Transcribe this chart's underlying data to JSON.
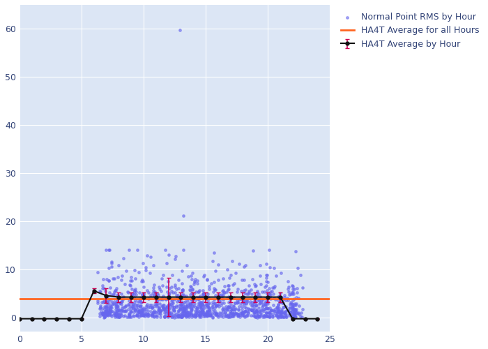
{
  "xlim": [
    0,
    25
  ],
  "ylim": [
    -3,
    65
  ],
  "yticks": [
    0,
    10,
    20,
    30,
    40,
    50,
    60
  ],
  "xticks": [
    0,
    5,
    10,
    15,
    20,
    25
  ],
  "bg_color": "#dce6f5",
  "scatter_color": "#6666ee",
  "scatter_alpha": 0.55,
  "scatter_size": 6,
  "line_color": "#111111",
  "line_marker": "o",
  "hline_color": "#ff6622",
  "hline_value": 3.8,
  "avg_hours": [
    0,
    1,
    2,
    3,
    4,
    5,
    6,
    7,
    8,
    9,
    10,
    11,
    12,
    13,
    14,
    15,
    16,
    17,
    18,
    19,
    20,
    21,
    22,
    23,
    24
  ],
  "avg_values": [
    -0.3,
    -0.3,
    -0.3,
    -0.3,
    -0.3,
    -0.3,
    5.5,
    4.5,
    4.2,
    4.2,
    4.2,
    4.2,
    4.2,
    4.2,
    4.2,
    4.2,
    4.2,
    4.2,
    4.2,
    4.2,
    4.2,
    4.2,
    -0.3,
    -0.3,
    -0.3
  ],
  "avg_errors": [
    0.1,
    0.1,
    0.1,
    0.1,
    0.1,
    0.1,
    0.5,
    1.5,
    1.0,
    1.0,
    1.0,
    1.0,
    4.0,
    1.0,
    1.0,
    1.0,
    1.0,
    1.0,
    1.0,
    1.0,
    1.0,
    1.0,
    0.1,
    0.1,
    0.1
  ],
  "legend_labels": [
    "Normal Point RMS by Hour",
    "HA4T Average by Hour",
    "HA4T Average for all Hours"
  ],
  "text_color": "#334477",
  "seed": 42
}
